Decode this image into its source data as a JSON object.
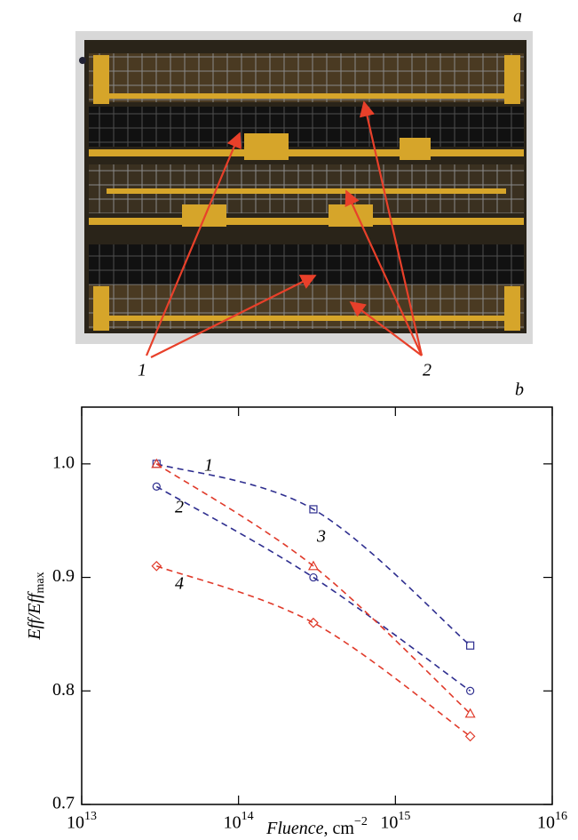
{
  "panel_a": {
    "label": "a",
    "callouts": [
      "1",
      "2"
    ]
  },
  "chart_data": {
    "type": "scatter",
    "panel_label": "b",
    "xlabel": {
      "main": "Fluence",
      "rest": ", cm",
      "sup": "−2"
    },
    "ylabel": {
      "main": "Eff/Eff",
      "sub": "max"
    },
    "log_x": true,
    "xlim": [
      10000000000000,
      10000000000000000
    ],
    "xticks": [
      {
        "value": 10000000000000,
        "label": "10^13"
      },
      {
        "value": 100000000000000,
        "label": "10^14"
      },
      {
        "value": 1000000000000000,
        "label": "10^15"
      },
      {
        "value": 10000000000000000,
        "label": "10^16"
      }
    ],
    "ylim": [
      0.7,
      1.05
    ],
    "yticks": [
      {
        "value": 0.7,
        "label": "0.7"
      },
      {
        "value": 0.8,
        "label": "0.8"
      },
      {
        "value": 0.9,
        "label": "0.9"
      },
      {
        "value": 1.0,
        "label": "1.0"
      }
    ],
    "x": [
      30000000000000,
      300000000000000,
      3000000000000000
    ],
    "series": [
      {
        "name": "1",
        "color": "#2e2e8f",
        "marker": "square",
        "values": [
          1.0,
          0.96,
          0.84
        ]
      },
      {
        "name": "2",
        "color": "#2e2e8f",
        "marker": "circle",
        "values": [
          0.98,
          0.9,
          0.8
        ]
      },
      {
        "name": "3",
        "color": "#e03a2a",
        "marker": "triangle",
        "values": [
          1.0,
          0.91,
          0.78
        ]
      },
      {
        "name": "4",
        "color": "#e03a2a",
        "marker": "diamond",
        "values": [
          0.91,
          0.86,
          0.76
        ]
      }
    ]
  }
}
